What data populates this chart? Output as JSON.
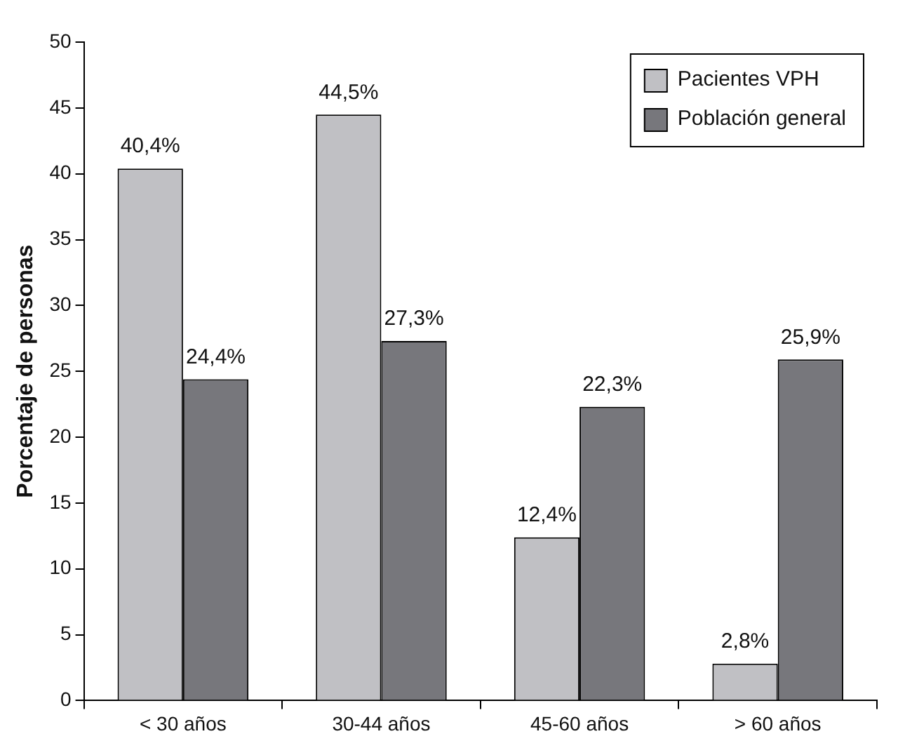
{
  "chart_data": {
    "type": "bar",
    "ylabel": "Porcentaje de personas",
    "categories": [
      "< 30 años",
      "30-44 años",
      "45-60 años",
      "> 60 años"
    ],
    "series": [
      {
        "name": "Pacientes VPH",
        "color": "#c0c0c4",
        "values": [
          40.4,
          44.5,
          12.4,
          2.8
        ],
        "value_labels": [
          "40,4%",
          "44,5%",
          "12,4%",
          "2,8%"
        ]
      },
      {
        "name": "Población general",
        "color": "#77777c",
        "values": [
          24.4,
          27.3,
          22.3,
          25.9
        ],
        "value_labels": [
          "24,4%",
          "27,3%",
          "22,3%",
          "25,9%"
        ]
      }
    ],
    "ylim": [
      0,
      50
    ],
    "yticks": [
      0,
      5,
      10,
      15,
      20,
      25,
      30,
      35,
      40,
      45,
      50
    ],
    "grid": false,
    "legend": "top right"
  }
}
